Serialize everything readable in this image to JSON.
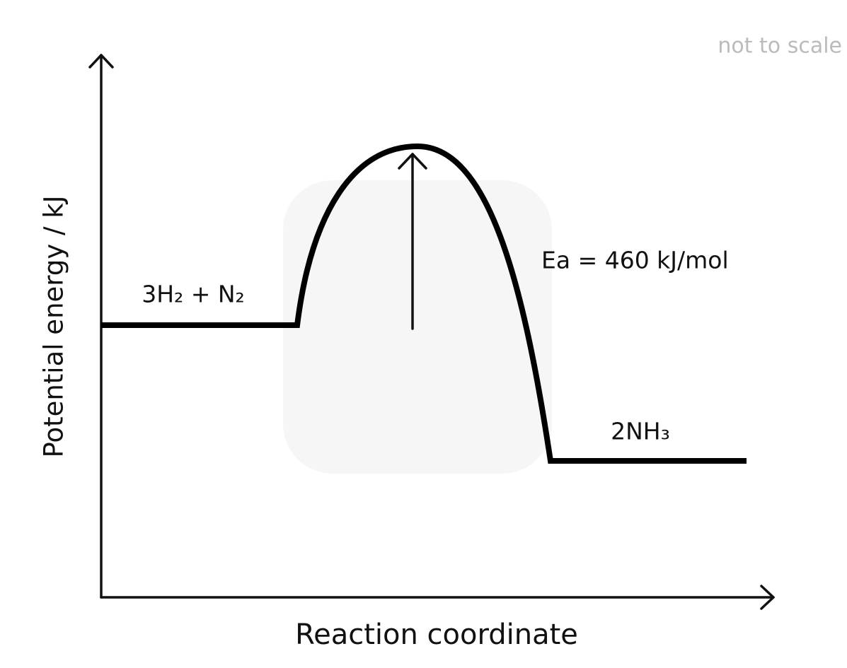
{
  "note": "not to scale",
  "axes": {
    "y_label": "Potential energy / kJ",
    "x_label": "Reaction coordinate"
  },
  "levels": {
    "reactants": "3H₂ + N₂",
    "products": "2NH₃"
  },
  "activation_energy": "Ea = 460 kJ/mol"
}
